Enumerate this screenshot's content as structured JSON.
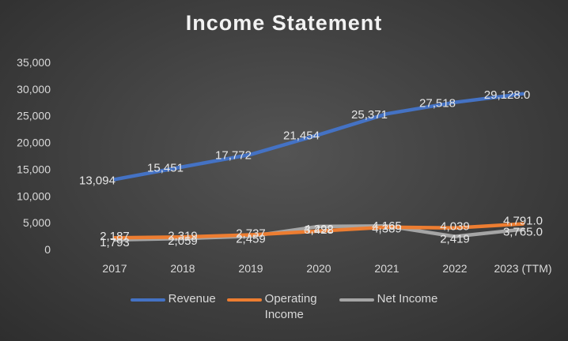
{
  "chart_data": {
    "type": "line",
    "title": "Income Statement",
    "xlabel": "",
    "ylabel": "",
    "categories": [
      "2017",
      "2018",
      "2019",
      "2020",
      "2021",
      "2022",
      "2023 (TTM)"
    ],
    "ylim": [
      0,
      35000
    ],
    "yticks": [
      "0",
      "5,000",
      "10,000",
      "15,000",
      "20,000",
      "25,000",
      "30,000",
      "35,000"
    ],
    "grid": false,
    "legend": "bottom",
    "series": [
      {
        "name": "Revenue",
        "color": "#4472c4",
        "values": [
          13094,
          15451,
          17772,
          21454,
          25371,
          27518,
          29128.0
        ],
        "labels": [
          "13,094",
          "15,451",
          "17,772",
          "21,454",
          "25,371",
          "27,518",
          "29,128.0"
        ]
      },
      {
        "name": "Operating Income",
        "color": "#ed7d31",
        "values": [
          2187,
          2319,
          2737,
          3428,
          4165,
          4039,
          4791.0
        ],
        "labels": [
          "2,187",
          "2,319",
          "2,737",
          "3,428",
          "4,165",
          "4,039",
          "4,791.0"
        ]
      },
      {
        "name": "Net Income",
        "color": "#a5a5a5",
        "values": [
          1793,
          2059,
          2459,
          4292,
          4389,
          2419,
          3765.0
        ],
        "labels": [
          "1,793",
          "2,059",
          "2,459",
          "4,292",
          "4,389",
          "2,419",
          "3,765.0"
        ]
      }
    ]
  }
}
